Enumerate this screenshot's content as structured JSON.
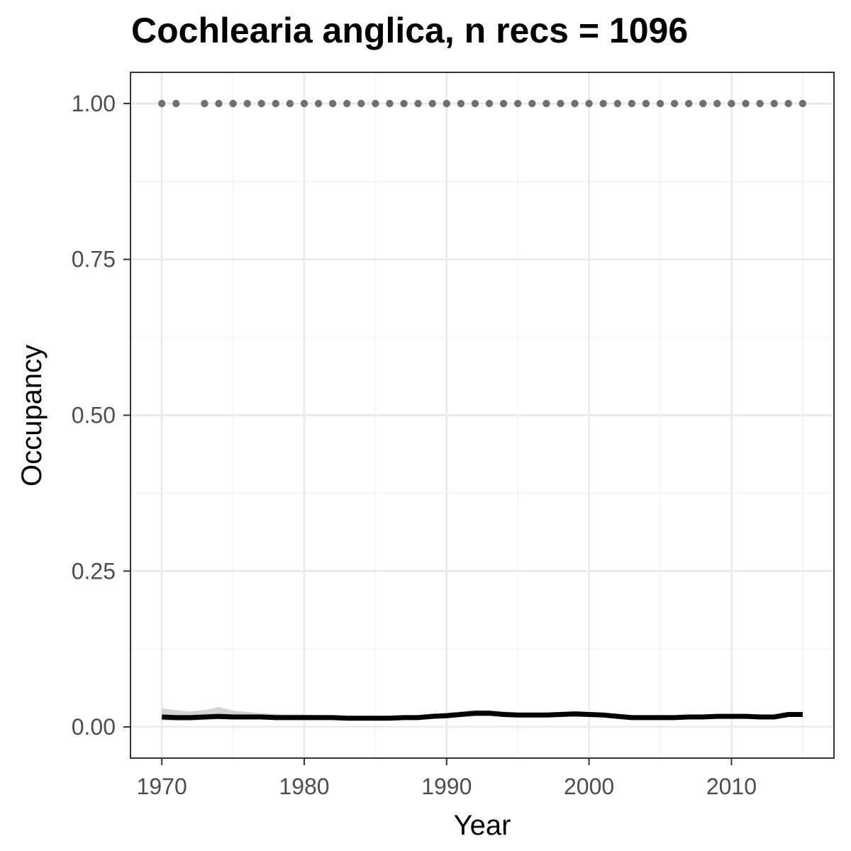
{
  "chart_data": {
    "type": "line",
    "title": "Cochlearia anglica, n recs = 1096",
    "xlabel": "Year",
    "ylabel": "Occupancy",
    "xlim": [
      1967.8,
      2017.2
    ],
    "ylim": [
      -0.05,
      1.05
    ],
    "x_ticks": [
      1970,
      1980,
      1990,
      2000,
      2010
    ],
    "y_ticks": [
      0.0,
      0.25,
      0.5,
      0.75,
      1.0
    ],
    "y_tick_labels": [
      "0.00",
      "0.25",
      "0.50",
      "0.75",
      "1.00"
    ],
    "grid": true,
    "legend": "none",
    "series": [
      {
        "kind": "line",
        "x": [
          1970,
          1971,
          1972,
          1973,
          1974,
          1975,
          1976,
          1977,
          1978,
          1979,
          1980,
          1981,
          1982,
          1983,
          1984,
          1985,
          1986,
          1987,
          1988,
          1989,
          1990,
          1991,
          1992,
          1993,
          1994,
          1995,
          1996,
          1997,
          1998,
          1999,
          2000,
          2001,
          2002,
          2003,
          2004,
          2005,
          2006,
          2007,
          2008,
          2009,
          2010,
          2011,
          2012,
          2013,
          2014,
          2015
        ],
        "y": [
          0.016,
          0.015,
          0.015,
          0.016,
          0.017,
          0.016,
          0.016,
          0.016,
          0.015,
          0.015,
          0.015,
          0.015,
          0.015,
          0.014,
          0.014,
          0.014,
          0.014,
          0.015,
          0.015,
          0.017,
          0.018,
          0.02,
          0.022,
          0.022,
          0.02,
          0.019,
          0.019,
          0.019,
          0.02,
          0.021,
          0.02,
          0.019,
          0.017,
          0.015,
          0.015,
          0.015,
          0.015,
          0.016,
          0.016,
          0.017,
          0.017,
          0.017,
          0.016,
          0.016,
          0.02,
          0.02
        ],
        "lower": [
          0.01,
          0.01,
          0.01,
          0.011,
          0.012,
          0.012,
          0.012,
          0.012,
          0.011,
          0.011,
          0.011,
          0.011,
          0.011,
          0.011,
          0.011,
          0.011,
          0.011,
          0.011,
          0.012,
          0.013,
          0.014,
          0.016,
          0.017,
          0.017,
          0.016,
          0.015,
          0.015,
          0.015,
          0.016,
          0.016,
          0.016,
          0.015,
          0.013,
          0.012,
          0.012,
          0.012,
          0.012,
          0.012,
          0.013,
          0.013,
          0.013,
          0.013,
          0.013,
          0.013,
          0.016,
          0.016
        ],
        "upper": [
          0.03,
          0.027,
          0.025,
          0.027,
          0.032,
          0.026,
          0.024,
          0.022,
          0.021,
          0.02,
          0.02,
          0.019,
          0.018,
          0.017,
          0.017,
          0.017,
          0.017,
          0.018,
          0.019,
          0.021,
          0.023,
          0.025,
          0.027,
          0.027,
          0.025,
          0.023,
          0.023,
          0.023,
          0.024,
          0.025,
          0.024,
          0.023,
          0.021,
          0.019,
          0.018,
          0.018,
          0.018,
          0.019,
          0.019,
          0.02,
          0.02,
          0.021,
          0.02,
          0.02,
          0.024,
          0.024
        ],
        "color": "#000000",
        "band_color": "#d3d3d3"
      },
      {
        "kind": "points",
        "x": [
          1970,
          1971,
          1973,
          1974,
          1975,
          1976,
          1977,
          1978,
          1979,
          1980,
          1981,
          1982,
          1983,
          1984,
          1985,
          1986,
          1987,
          1988,
          1989,
          1990,
          1991,
          1992,
          1993,
          1994,
          1995,
          1996,
          1997,
          1998,
          1999,
          2000,
          2001,
          2002,
          2003,
          2004,
          2005,
          2006,
          2007,
          2008,
          2009,
          2010,
          2011,
          2012,
          2013,
          2014,
          2015
        ],
        "y": [
          1,
          1,
          1,
          1,
          1,
          1,
          1,
          1,
          1,
          1,
          1,
          1,
          1,
          1,
          1,
          1,
          1,
          1,
          1,
          1,
          1,
          1,
          1,
          1,
          1,
          1,
          1,
          1,
          1,
          1,
          1,
          1,
          1,
          1,
          1,
          1,
          1,
          1,
          1,
          1,
          1,
          1,
          1,
          1,
          1
        ],
        "color": "#707070"
      }
    ]
  }
}
